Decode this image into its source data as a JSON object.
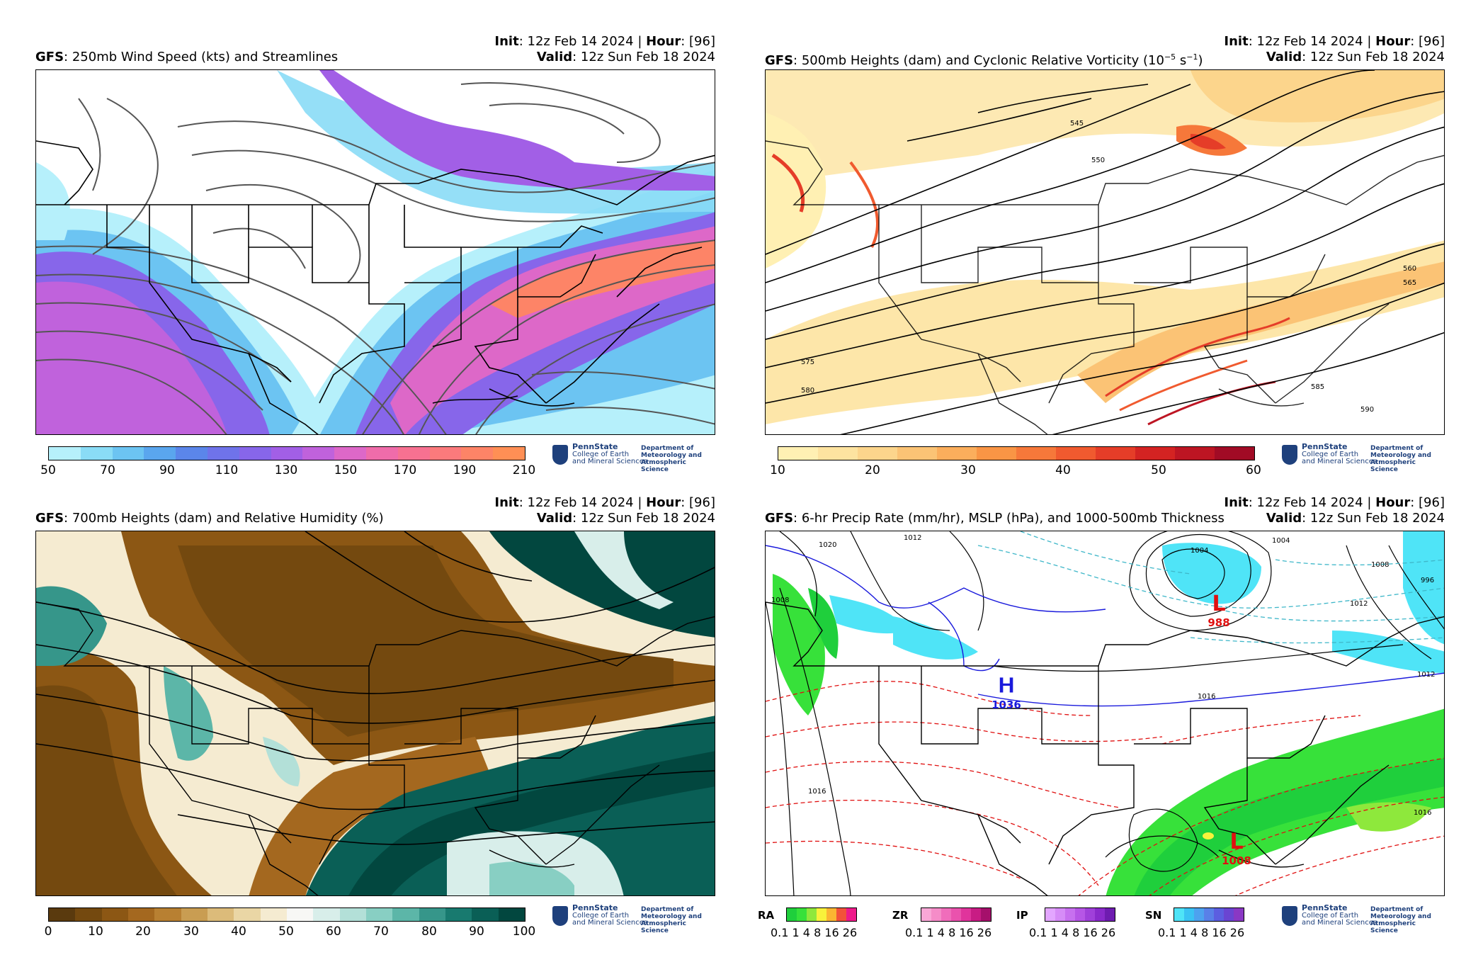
{
  "panels": [
    {
      "title_bold": "GFS",
      "title": ": 250mb Wind Speed (kts) and Streamlines",
      "init_label": "Init",
      "init_value": ": 12z Feb 14 2024 | ",
      "hour_label": "Hour",
      "hour_value": ": [96]",
      "valid_label": "Valid",
      "valid_value": ": 12z Sun Feb 18 2024",
      "colorbar_ticks": [
        "50",
        "70",
        "90",
        "110",
        "130",
        "150",
        "170",
        "190",
        "210"
      ],
      "colorbar_colors": [
        "#b6f0fb",
        "#8adcf6",
        "#6cc4f2",
        "#5aa6ee",
        "#5b86ea",
        "#6f73ea",
        "#8766ea",
        "#a25fe6",
        "#c062dc",
        "#dd68c8",
        "#ef6caa",
        "#f77191",
        "#fb7a7c",
        "#fd8467",
        "#ff8f55"
      ]
    },
    {
      "title_bold": "GFS",
      "title": ": 500mb Heights (dam) and Cyclonic Relative Vorticity (10",
      "title_sup1": "−5",
      "title_mid": " s",
      "title_sup2": "−1",
      "title_end": ")",
      "init_label": "Init",
      "init_value": ": 12z Feb 14 2024 | ",
      "hour_label": "Hour",
      "hour_value": ": [96]",
      "valid_label": "Valid",
      "valid_value": ": 12z Sun Feb 18 2024",
      "contour_labels": [
        "545",
        "550",
        "560",
        "565",
        "575",
        "580",
        "585",
        "590"
      ],
      "colorbar_ticks": [
        "10",
        "20",
        "30",
        "40",
        "50",
        "60"
      ],
      "colorbar_colors": [
        "#fff0b3",
        "#fde3a0",
        "#fcd58c",
        "#fbc375",
        "#fbae5c",
        "#f99545",
        "#f6783a",
        "#f05a2f",
        "#e53d28",
        "#d42322",
        "#bd1523",
        "#a10b25"
      ]
    },
    {
      "title_bold": "GFS",
      "title": ": 700mb Heights (dam) and Relative Humidity (%)",
      "init_label": "Init",
      "init_value": ": 12z Feb 14 2024 | ",
      "hour_label": "Hour",
      "hour_value": ": [96]",
      "valid_label": "Valid",
      "valid_value": ": 12z Sun Feb 18 2024",
      "colorbar_ticks": [
        "0",
        "10",
        "20",
        "30",
        "40",
        "50",
        "60",
        "70",
        "80",
        "90",
        "100"
      ],
      "colorbar_colors": [
        "#5a3a0e",
        "#74490f",
        "#8c5714",
        "#a4681f",
        "#b88032",
        "#c99d52",
        "#dcbb7a",
        "#ead6a5",
        "#f5ebd1",
        "#f7f7f5",
        "#d8eeea",
        "#b3e0d8",
        "#88cfc3",
        "#5cb6a8",
        "#36968a",
        "#187a6f",
        "#0a5f56",
        "#02473f"
      ]
    },
    {
      "title_bold": "GFS",
      "title": ": 6-hr Precip Rate (mm/hr), MSLP (hPa), and 1000-500mb Thickness",
      "init_label": "Init",
      "init_value": ": 12z Feb 14 2024 | ",
      "hour_label": "Hour",
      "hour_value": ": [96]",
      "valid_label": "Valid",
      "valid_value": ": 12z Sun Feb 18 2024",
      "pressure_centers": [
        {
          "letter": "H",
          "value": "1036",
          "color": "#1a1adc"
        },
        {
          "letter": "L",
          "value": "988",
          "color": "#e01010"
        },
        {
          "letter": "L",
          "value": "1008",
          "color": "#e01010"
        }
      ],
      "isobar_labels": [
        "1020",
        "1012",
        "1008",
        "1004",
        "1016",
        "1004",
        "1008",
        "1012",
        "1016",
        "996",
        "1012",
        "1016"
      ],
      "precip_legends": [
        {
          "label": "RA",
          "colors": [
            "#1fcf3c",
            "#37e13a",
            "#8ee83c",
            "#f8f23b",
            "#fbb532",
            "#f2523a",
            "#ee1a8a"
          ]
        },
        {
          "label": "ZR",
          "colors": [
            "#f9a7d6",
            "#f58cc8",
            "#f06dbb",
            "#ea52ad",
            "#e0349c",
            "#c81c84",
            "#a5106b"
          ]
        },
        {
          "label": "IP",
          "colors": [
            "#e3a6ff",
            "#d68cf7",
            "#c770ef",
            "#b656e6",
            "#a040da",
            "#8a2acb",
            "#6e1cb0"
          ]
        },
        {
          "label": "SN",
          "colors": [
            "#4fe4f7",
            "#3ac3f3",
            "#4da2ef",
            "#5980e8",
            "#5c5ee0",
            "#6a45d2",
            "#8a38c4"
          ]
        }
      ],
      "precip_ticks": "0.1 1  4  8 16 26"
    }
  ],
  "logo": {
    "org": "PennState",
    "college_line1": "College of Earth",
    "college_line2": "and Mineral Sciences",
    "dept_line1": "Department of",
    "dept_line2": "Meteorology and",
    "dept_line3": "Atmospheric Science"
  }
}
